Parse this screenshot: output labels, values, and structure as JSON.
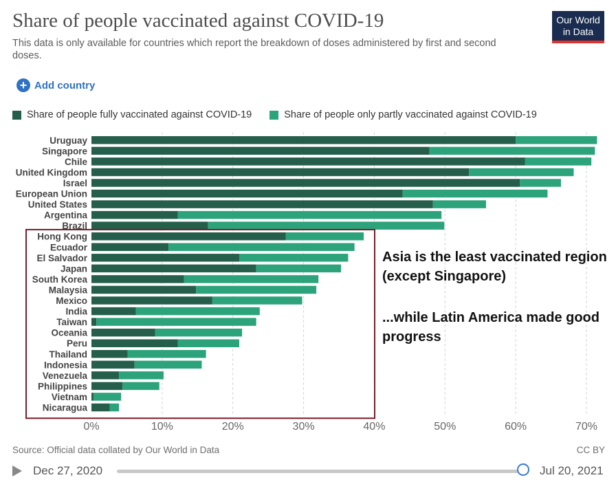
{
  "header": {
    "title": "Share of people vaccinated against COVID-19",
    "subtitle": "This data is only available for countries which report the breakdown of doses administered by first and second doses.",
    "logo_line1": "Our World",
    "logo_line2": "in Data"
  },
  "controls": {
    "add_country": "Add country"
  },
  "colors": {
    "full": "#255f4b",
    "partial": "#2ca37a",
    "box": "#7a1a2a"
  },
  "legend": {
    "full": "Share of people fully vaccinated against COVID-19",
    "partial": "Share of people only partly vaccinated against COVID-19"
  },
  "chart_data": {
    "type": "bar",
    "orientation": "horizontal",
    "stacked": true,
    "title": "Share of people vaccinated against COVID-19",
    "categories": [
      "Uruguay",
      "Singapore",
      "Chile",
      "United Kingdom",
      "Israel",
      "European Union",
      "United States",
      "Argentina",
      "Brazil",
      "Hong Kong",
      "Ecuador",
      "El Salvador",
      "Japan",
      "South Korea",
      "Malaysia",
      "Mexico",
      "India",
      "Taiwan",
      "Oceania",
      "Peru",
      "Thailand",
      "Indonesia",
      "Venezuela",
      "Philippines",
      "Vietnam",
      "Nicaragua"
    ],
    "series": [
      {
        "name": "Share of people fully vaccinated against COVID-19",
        "values": [
          60.0,
          47.8,
          61.3,
          53.4,
          60.6,
          44.0,
          48.3,
          12.2,
          16.5,
          27.5,
          10.9,
          20.9,
          23.3,
          13.1,
          14.8,
          17.1,
          6.3,
          0.7,
          9.0,
          12.2,
          5.1,
          6.1,
          3.9,
          4.4,
          0.3,
          2.6
        ]
      },
      {
        "name": "Share of people only partly vaccinated against COVID-19",
        "values": [
          11.5,
          23.4,
          9.4,
          14.8,
          5.8,
          20.5,
          7.5,
          37.3,
          33.4,
          11.0,
          26.3,
          15.4,
          12.0,
          19.0,
          17.0,
          12.7,
          17.5,
          22.6,
          12.3,
          8.7,
          11.1,
          9.5,
          6.3,
          5.2,
          3.9,
          1.3
        ]
      }
    ],
    "xlim": [
      0,
      70
    ],
    "xticks": [
      "0%",
      "10%",
      "20%",
      "30%",
      "40%",
      "50%",
      "60%",
      "70%"
    ],
    "grid": true,
    "annotations": [
      "Asia is the least vaccinated region (except Singapore)",
      "...while Latin America made good progress"
    ]
  },
  "footer": {
    "source": "Source: Official data collated by Our World in Data",
    "license": "CC BY",
    "start_date": "Dec 27, 2020",
    "end_date": "Jul 20, 2021",
    "timeline_position": 1.0
  }
}
